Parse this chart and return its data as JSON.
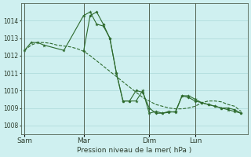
{
  "xlabel": "Pression niveau de la mer( hPa )",
  "background_color": "#cff0f0",
  "grid_color": "#aad8d8",
  "line_color": "#2d6a2d",
  "vline_color": "#556655",
  "ylim": [
    1007.5,
    1015.0
  ],
  "yticks": [
    1008,
    1009,
    1010,
    1011,
    1012,
    1013,
    1014
  ],
  "xtick_labels": [
    "Sam",
    "Mar",
    "Dim",
    "Lun"
  ],
  "xtick_positions": [
    0,
    9,
    19,
    26
  ],
  "xlim": [
    -0.5,
    34
  ],
  "vline_positions": [
    0,
    9,
    19,
    26
  ],
  "figsize": [
    3.2,
    2.0
  ],
  "dpi": 100,
  "series_dashed_x": [
    0,
    1,
    2,
    3,
    4,
    5,
    6,
    7,
    8,
    9,
    10,
    11,
    12,
    13,
    14,
    15,
    16,
    17,
    18,
    19,
    20,
    21,
    22,
    23,
    24,
    25,
    26,
    27,
    28,
    29,
    30,
    31,
    32,
    33
  ],
  "series_dashed_y": [
    1012.3,
    1012.6,
    1012.75,
    1012.75,
    1012.7,
    1012.6,
    1012.55,
    1012.5,
    1012.4,
    1012.25,
    1012.0,
    1011.7,
    1011.4,
    1011.1,
    1010.8,
    1010.5,
    1010.2,
    1009.9,
    1009.6,
    1009.4,
    1009.2,
    1009.1,
    1009.0,
    1008.95,
    1008.95,
    1009.0,
    1009.1,
    1009.3,
    1009.4,
    1009.4,
    1009.35,
    1009.2,
    1009.1,
    1008.8
  ],
  "series_star_x": [
    0,
    1,
    2,
    3,
    6,
    9,
    10,
    11,
    12,
    13,
    14,
    15,
    16,
    17,
    18,
    19,
    20,
    21,
    22,
    23,
    24,
    25,
    26,
    27,
    28,
    29,
    30,
    31,
    32,
    33
  ],
  "series_star_y": [
    1012.3,
    1012.75,
    1012.75,
    1012.6,
    1012.3,
    1014.3,
    1014.5,
    1013.8,
    1013.7,
    1013.0,
    1011.0,
    1009.4,
    1009.4,
    1009.4,
    1010.0,
    1008.7,
    1008.8,
    1008.7,
    1008.8,
    1008.75,
    1009.7,
    1009.7,
    1009.5,
    1009.3,
    1009.2,
    1009.1,
    1009.0,
    1008.9,
    1008.8,
    1008.7
  ],
  "series_diamond_x": [
    9,
    10,
    11,
    12,
    13,
    14,
    15,
    16,
    17,
    18,
    19,
    20,
    21,
    22,
    23,
    24,
    25,
    26,
    27,
    28,
    29,
    30,
    31,
    32,
    33
  ],
  "series_diamond_y": [
    1012.25,
    1014.3,
    1014.5,
    1013.8,
    1013.0,
    1011.0,
    1009.4,
    1009.4,
    1010.0,
    1009.9,
    1009.0,
    1008.7,
    1008.7,
    1008.75,
    1008.8,
    1009.7,
    1009.6,
    1009.4,
    1009.3,
    1009.2,
    1009.1,
    1009.0,
    1009.0,
    1008.9,
    1008.7
  ]
}
